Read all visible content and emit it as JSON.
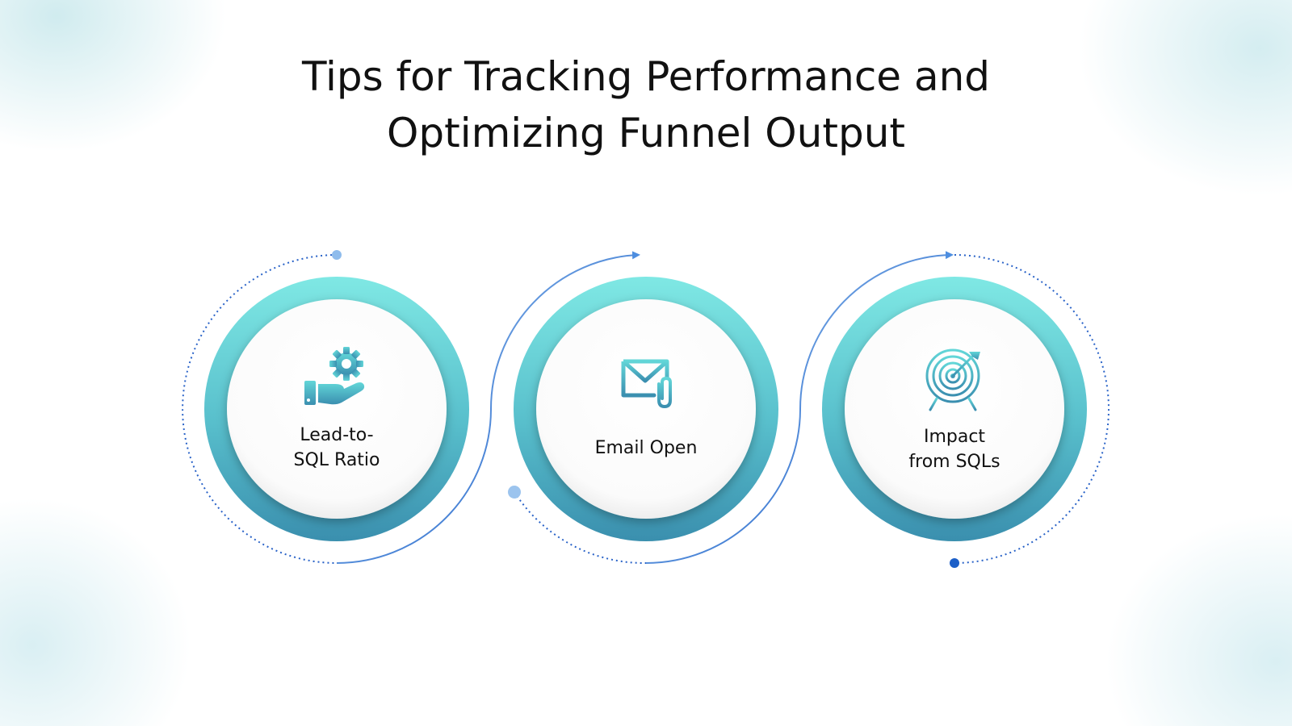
{
  "title": {
    "line1": "Tips for Tracking Performance and",
    "line2": "Optimizing Funnel Output"
  },
  "steps": [
    {
      "label": "Lead-to-\nSQL Ratio",
      "icon": "hand-gear-icon"
    },
    {
      "label": "Email Open",
      "icon": "email-attachment-icon"
    },
    {
      "label": "Impact\nfrom SQLs",
      "icon": "target-arrow-icon"
    }
  ],
  "colors": {
    "ring_top": "#7fe8e4",
    "ring_bottom": "#3a8fae",
    "icon_top": "#62d6d8",
    "icon_bottom": "#3b8fb0",
    "connector": "#1c5fc8",
    "connector_light": "#8fbcec"
  }
}
